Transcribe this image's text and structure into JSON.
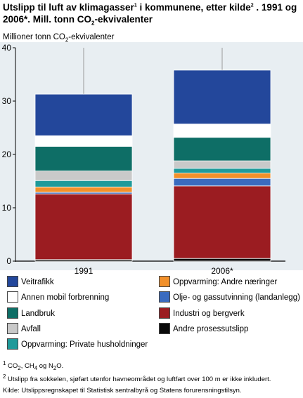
{
  "title": {
    "part1": "Utslipp til luft av klimagasser",
    "sup1": "1",
    "part2": " i kommunene, etter kilde",
    "sup2": "2",
    "part3": " . 1991 og 2006*. Mill. tonn CO",
    "sub": "2",
    "part4": "-ekvivalenter"
  },
  "ylabel": {
    "part1": "Millioner tonn CO",
    "sub": "2",
    "part2": "-ekvivalenter"
  },
  "notes": {
    "n1_sup": "1",
    "n1_a": " CO",
    "n1_sub1": "2",
    "n1_b": ", CH",
    "n1_sub2": "4",
    "n1_c": " og N",
    "n1_sub3": "2",
    "n1_d": "O.",
    "n2_sup": "2",
    "n2_text": " Utslipp fra sokkelen, sjøfart utenfor havneområdet og luftfart over 100 m er ikke inkludert.",
    "source": "Kilde: Utslippsregnskapet til Statistisk sentralbyrå og Statens forurensningstilsyn."
  },
  "chart_data": {
    "type": "bar",
    "stacked": true,
    "categories": [
      "1991",
      "2006*"
    ],
    "ylim": [
      0,
      40
    ],
    "yticks": [
      0,
      10,
      20,
      30,
      40
    ],
    "grid": false,
    "series": [
      {
        "name": "Andre prosessutslipp",
        "color": "#0a0a0a",
        "values": [
          0.3,
          0.5
        ]
      },
      {
        "name": "Industri og bergverk",
        "color": "#9b1c21",
        "values": [
          12.3,
          13.6
        ]
      },
      {
        "name": "Olje- og gassutvinning (landanlegg)",
        "color": "#3a6bbf",
        "values": [
          0.3,
          1.4
        ]
      },
      {
        "name": "Oppvarming:  Andre næringer",
        "color": "#f2902a",
        "values": [
          1.0,
          1.0
        ]
      },
      {
        "name": "Oppvarming: Private husholdninger",
        "color": "#1f9a9a",
        "values": [
          1.2,
          0.9
        ]
      },
      {
        "name": "Avfall",
        "color": "#c9c9c9",
        "values": [
          1.8,
          1.4
        ]
      },
      {
        "name": "Landbruk",
        "color": "#0e6e66",
        "values": [
          4.6,
          4.4
        ]
      },
      {
        "name": "Annen mobil forbrenning",
        "color": "#ffffff",
        "values": [
          2.0,
          2.5
        ]
      },
      {
        "name": "Veitrafikk",
        "color": "#23479b",
        "values": [
          7.8,
          10.1
        ]
      }
    ],
    "legend": {
      "placement": "bottom",
      "order": [
        "Veitrafikk",
        "Annen mobil forbrenning",
        "Landbruk",
        "Avfall",
        "Oppvarming: Private husholdninger",
        "Oppvarming:  Andre næringer",
        "Olje- og gassutvinning (landanlegg)",
        "Industri og bergverk",
        "Andre prosessutslipp"
      ]
    }
  }
}
